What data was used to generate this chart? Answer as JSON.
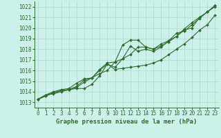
{
  "title": "Graphe pression niveau de la mer (hPa)",
  "background_color": "#cef0ea",
  "grid_color": "#b8dcd6",
  "line_color": "#2d6e2d",
  "marker_color": "#2d6e2d",
  "xlim": [
    -0.5,
    23.5
  ],
  "ylim": [
    1012.5,
    1022.5
  ],
  "xticks": [
    0,
    1,
    2,
    3,
    4,
    5,
    6,
    7,
    8,
    9,
    10,
    11,
    12,
    13,
    14,
    15,
    16,
    17,
    18,
    19,
    20,
    21,
    22,
    23
  ],
  "yticks": [
    1013,
    1014,
    1015,
    1016,
    1017,
    1018,
    1019,
    1020,
    1021,
    1022
  ],
  "line1": [
    1013.3,
    1013.7,
    1013.8,
    1014.0,
    1014.2,
    1014.3,
    1014.3,
    1014.7,
    1015.5,
    1016.6,
    1016.1,
    1016.2,
    1016.3,
    1016.4,
    1016.5,
    1016.7,
    1017.0,
    1017.5,
    1018.0,
    1018.5,
    1019.1,
    1019.8,
    1020.3,
    1021.2
  ],
  "line2": [
    1013.3,
    1013.7,
    1014.0,
    1014.2,
    1014.3,
    1014.8,
    1015.2,
    1015.3,
    1015.7,
    1016.0,
    1016.8,
    1018.4,
    1018.85,
    1018.85,
    1018.2,
    1018.0,
    1018.3,
    1018.7,
    1019.2,
    1019.8,
    1020.0,
    1021.0,
    1021.5,
    1022.1
  ],
  "line3": [
    1013.3,
    1013.6,
    1013.9,
    1014.1,
    1014.2,
    1014.5,
    1015.1,
    1015.3,
    1016.0,
    1016.6,
    1016.3,
    1017.1,
    1017.5,
    1018.2,
    1018.2,
    1018.0,
    1018.5,
    1018.8,
    1019.5,
    1019.7,
    1020.3,
    1020.9,
    1021.5,
    1022.1
  ],
  "line4": [
    1013.3,
    1013.6,
    1013.9,
    1014.1,
    1014.2,
    1014.4,
    1014.9,
    1015.3,
    1016.1,
    1016.7,
    1016.8,
    1017.1,
    1018.3,
    1017.8,
    1018.0,
    1017.8,
    1018.2,
    1018.8,
    1019.2,
    1019.9,
    1020.5,
    1021.0,
    1021.5,
    1022.0
  ],
  "tick_fontsize": 5.5,
  "xlabel_fontsize": 6.5,
  "marker_size": 2.0,
  "line_width": 0.8
}
